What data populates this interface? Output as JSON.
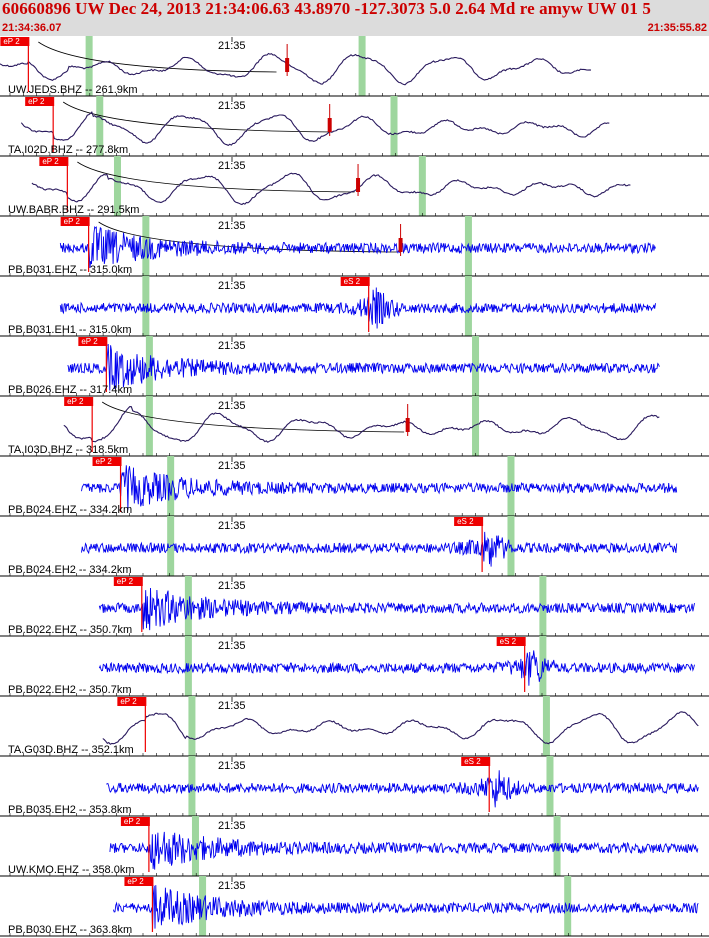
{
  "header": {
    "title": "60660896 UW Dec 24, 2013 21:34:06.63    43.8970 -127.3073  5.0 2.64 Md re amyw UW 01    5",
    "start_time": "21:34:36.07",
    "end_time": "21:35:55.82"
  },
  "colors": {
    "header_bg": "#dcdcdc",
    "header_text": "#cc0000",
    "short_period_trace": "#0000ee",
    "broadband_trace": "#2a1a5e",
    "pick": "#ee0000",
    "window": "#9ed69e",
    "amp_marker": "#cc0000",
    "coda_line": "#000000"
  },
  "chart_data": {
    "type": "seismogram",
    "time_range": [
      "21:34:36.07",
      "21:35:55.82"
    ],
    "minute_tick_label": "21:35",
    "traces": [
      {
        "label": "UW.JEDS.BHZ -- 261.9km",
        "kind": "broadband",
        "picks": [
          {
            "label": "eP 2",
            "t": 0.04
          }
        ],
        "windows": [
          0.125,
          0.51
        ],
        "amp_t": 0.405,
        "coda_end": 0.39,
        "signal_start": 0.0,
        "signal_end": 0.835
      },
      {
        "label": "TA.I02D.BHZ -- 277.8km",
        "kind": "broadband",
        "picks": [
          {
            "label": "eP 2",
            "t": 0.075
          }
        ],
        "windows": [
          0.14,
          0.555
        ],
        "amp_t": 0.465,
        "coda_end": 0.47,
        "signal_start": 0.03,
        "signal_end": 0.86
      },
      {
        "label": "UW.BABR.BHZ -- 291.5km",
        "kind": "broadband",
        "picks": [
          {
            "label": "eP 2",
            "t": 0.095
          }
        ],
        "windows": [
          0.165,
          0.595
        ],
        "amp_t": 0.505,
        "coda_end": 0.5,
        "signal_start": 0.045,
        "signal_end": 0.89
      },
      {
        "label": "PB.B031.EHZ -- 315.0km",
        "kind": "short",
        "picks": [
          {
            "label": "eP 2",
            "t": 0.125
          }
        ],
        "windows": [
          0.205,
          0.66
        ],
        "amp_t": 0.565,
        "coda_end": 0.56,
        "signal_start": 0.085,
        "signal_end": 0.925
      },
      {
        "label": "PB.B031.EH1 -- 315.0km",
        "kind": "short",
        "picks": [
          {
            "label": "eS 2",
            "t": 0.52
          }
        ],
        "windows": [
          0.205,
          0.66
        ],
        "amp_t": null,
        "coda_end": null,
        "signal_start": 0.085,
        "signal_end": 0.925
      },
      {
        "label": "PB.B026.EHZ -- 317.4km",
        "kind": "short",
        "picks": [
          {
            "label": "eP 2",
            "t": 0.15
          }
        ],
        "windows": [
          0.21,
          0.67
        ],
        "amp_t": null,
        "coda_end": null,
        "signal_start": 0.095,
        "signal_end": 0.93
      },
      {
        "label": "TA.I03D.BHZ -- 318.5km",
        "kind": "broadband",
        "picks": [
          {
            "label": "eP 2",
            "t": 0.13
          }
        ],
        "windows": [
          0.21,
          0.67
        ],
        "amp_t": 0.575,
        "coda_end": 0.57,
        "signal_start": 0.09,
        "signal_end": 0.93
      },
      {
        "label": "PB.B024.EHZ -- 334.2km",
        "kind": "short",
        "picks": [
          {
            "label": "eP 2",
            "t": 0.17
          }
        ],
        "windows": [
          0.24,
          0.72
        ],
        "amp_t": null,
        "coda_end": null,
        "signal_start": 0.115,
        "signal_end": 0.955
      },
      {
        "label": "PB.B024.EH2 -- 334.2km",
        "kind": "short",
        "picks": [
          {
            "label": "eS 2",
            "t": 0.68
          }
        ],
        "windows": [
          0.24,
          0.72
        ],
        "amp_t": null,
        "coda_end": null,
        "signal_start": 0.115,
        "signal_end": 0.955
      },
      {
        "label": "PB.B022.EHZ -- 350.7km",
        "kind": "short",
        "picks": [
          {
            "label": "eP 2",
            "t": 0.2
          }
        ],
        "windows": [
          0.265,
          0.765
        ],
        "amp_t": null,
        "coda_end": null,
        "signal_start": 0.14,
        "signal_end": 0.98
      },
      {
        "label": "PB.B022.EH2 -- 350.7km",
        "kind": "short",
        "picks": [
          {
            "label": "eS 2",
            "t": 0.74
          }
        ],
        "windows": [
          0.265,
          0.765
        ],
        "amp_t": null,
        "coda_end": null,
        "signal_start": 0.14,
        "signal_end": 0.98
      },
      {
        "label": "TA.G03D.BHZ -- 352.1km",
        "kind": "broadband",
        "picks": [
          {
            "label": "eP 2",
            "t": 0.205
          }
        ],
        "windows": [
          0.27,
          0.77
        ],
        "amp_t": null,
        "coda_end": null,
        "signal_start": 0.145,
        "signal_end": 0.985
      },
      {
        "label": "PB.B035.EH2 -- 353.8km",
        "kind": "short",
        "picks": [
          {
            "label": "eS 2",
            "t": 0.69
          }
        ],
        "windows": [
          0.27,
          0.775
        ],
        "amp_t": null,
        "coda_end": null,
        "signal_start": 0.15,
        "signal_end": 0.985
      },
      {
        "label": "UW.KMO.EHZ -- 358.0km",
        "kind": "short",
        "picks": [
          {
            "label": "eP 2",
            "t": 0.21
          }
        ],
        "windows": [
          0.275,
          0.785
        ],
        "amp_t": null,
        "coda_end": null,
        "signal_start": 0.155,
        "signal_end": 0.985
      },
      {
        "label": "PB.B030.EHZ -- 363.8km",
        "kind": "short",
        "picks": [
          {
            "label": "eP 2",
            "t": 0.215
          }
        ],
        "windows": [
          0.285,
          0.8
        ],
        "amp_t": null,
        "coda_end": null,
        "signal_start": 0.16,
        "signal_end": 0.985
      }
    ]
  }
}
